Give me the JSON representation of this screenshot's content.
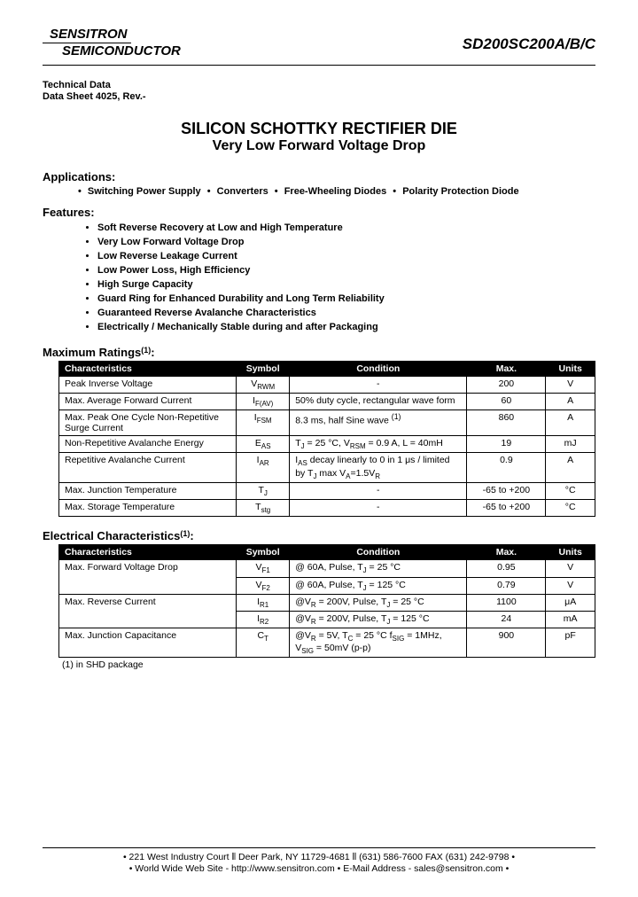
{
  "header": {
    "logo_line1": "SENSITRON",
    "logo_line2": "SEMICONDUCTOR",
    "part_number": "SD200SC200A/B/C"
  },
  "tech": {
    "line1": "Technical Data",
    "line2": "Data Sheet 4025, Rev.-"
  },
  "titles": {
    "main": "SILICON SCHOTTKY RECTIFIER DIE",
    "sub": "Very Low Forward Voltage Drop"
  },
  "applications": {
    "heading": "Applications:",
    "items": [
      "Switching Power Supply",
      "Converters",
      "Free-Wheeling Diodes",
      "Polarity Protection Diode"
    ]
  },
  "features": {
    "heading": "Features:",
    "items": [
      "Soft Reverse Recovery at Low and High Temperature",
      "Very Low Forward Voltage Drop",
      "Low Reverse Leakage Current",
      "Low Power Loss, High Efficiency",
      "High Surge Capacity",
      "Guard Ring for Enhanced Durability and Long Term Reliability",
      "Guaranteed Reverse Avalanche Characteristics",
      "Electrically / Mechanically Stable during and after Packaging"
    ]
  },
  "max_ratings": {
    "heading": "Maximum Ratings",
    "sup": "(1)",
    "colon": ":",
    "headers": [
      "Characteristics",
      "Symbol",
      "Condition",
      "Max.",
      "Units"
    ],
    "rows": [
      {
        "char": "Peak Inverse Voltage",
        "sym": "V<sub>RWM</sub>",
        "cond": "-",
        "max": "200",
        "unit": "V"
      },
      {
        "char": "Max. Average Forward Current",
        "sym": "I<sub>F(AV)</sub>",
        "cond": "50% duty cycle, rectangular wave form",
        "max": "60",
        "unit": "A"
      },
      {
        "char": "Max. Peak One Cycle Non-Repetitive Surge Current",
        "sym": "I<sub>FSM</sub>",
        "cond": "8.3 ms, half Sine wave <sup>(1)</sup>",
        "max": "860",
        "unit": "A"
      },
      {
        "char": "Non-Repetitive Avalanche Energy",
        "sym": "E<sub>AS</sub>",
        "cond": "T<sub>J</sub> = 25 °C, V<sub>RSM</sub> = 0.9 A, L = 40mH",
        "max": "19",
        "unit": "mJ"
      },
      {
        "char": "Repetitive Avalanche Current",
        "sym": "I<sub>AR</sub>",
        "cond": "I<sub>AS</sub> decay linearly to 0 in 1 μs / limited by T<sub>J</sub> max V<sub>A</sub>=1.5V<sub>R</sub>",
        "max": "0.9",
        "unit": "A"
      },
      {
        "char": "Max. Junction Temperature",
        "sym": "T<sub>J</sub>",
        "cond": "-",
        "max": "-65 to +200",
        "unit": "°C"
      },
      {
        "char": "Max. Storage Temperature",
        "sym": "T<sub>stg</sub>",
        "cond": "-",
        "max": "-65 to +200",
        "unit": "°C"
      }
    ]
  },
  "elec_char": {
    "heading": "Electrical Characteristics",
    "sup": "(1)",
    "colon": ":",
    "headers": [
      "Characteristics",
      "Symbol",
      "Condition",
      "Max.",
      "Units"
    ],
    "rows": [
      {
        "char": "Max. Forward Voltage Drop",
        "rowspan": 2,
        "sym": "V<sub>F1</sub>",
        "cond": "@ 60A, Pulse, T<sub>J</sub> = 25 °C",
        "max": "0.95",
        "unit": "V"
      },
      {
        "char": "",
        "sym": "V<sub>F2</sub>",
        "cond": "@ 60A, Pulse, T<sub>J</sub> = 125 °C",
        "max": "0.79",
        "unit": "V"
      },
      {
        "char": "Max. Reverse Current",
        "rowspan": 2,
        "sym": "I<sub>R1</sub>",
        "cond": "@V<sub>R</sub> = 200V, Pulse, T<sub>J</sub> = 25 °C",
        "max": "1100",
        "unit": "μA"
      },
      {
        "char": "",
        "sym": "I<sub>R2</sub>",
        "cond": "@V<sub>R</sub> = 200V, Pulse, T<sub>J</sub> = 125 °C",
        "max": "24",
        "unit": "mA"
      },
      {
        "char": "Max. Junction Capacitance",
        "rowspan": 1,
        "sym": "C<sub>T</sub>",
        "cond": "@V<sub>R</sub> = 5V, T<sub>C</sub> = 25 °C f<sub>SIG</sub> = 1MHz, V<sub>SIG</sub> = 50mV (p-p)",
        "max": "900",
        "unit": "pF"
      }
    ]
  },
  "footnote": "(1) in SHD package",
  "footer": {
    "line1": "• 221 West Industry Court  ⦀  Deer Park, NY  11729-4681  ⦀ (631) 586-7600  FAX (631) 242-9798 •",
    "line2": "• World Wide Web Site - http://www.sensitron.com • E-Mail Address - sales@sensitron.com •"
  }
}
